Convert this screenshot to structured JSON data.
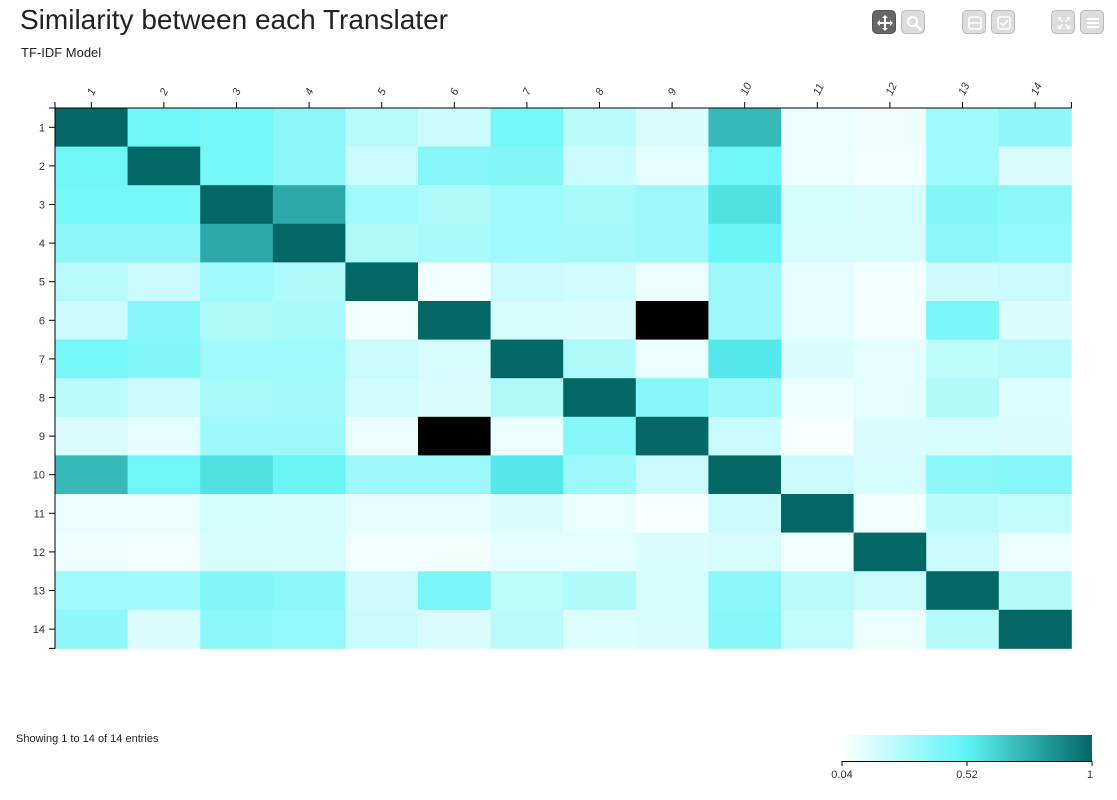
{
  "header": {
    "title": "Similarity between each Translater",
    "subtitle": "TF-IDF Model"
  },
  "toolbar": {
    "buttons": [
      {
        "name": "move-button",
        "icon": "move-icon",
        "active": true
      },
      {
        "name": "zoom-button",
        "icon": "search-icon",
        "active": false
      },
      {
        "name": "row-select-button",
        "icon": "row-icon",
        "active": false
      },
      {
        "name": "checkbox-button",
        "icon": "checkbox-icon",
        "active": false
      },
      {
        "name": "fullscreen-button",
        "icon": "expand-icon",
        "active": false
      },
      {
        "name": "menu-button",
        "icon": "menu-icon",
        "active": false
      }
    ]
  },
  "footer": {
    "entries_text": "Showing 1 to 14 of 14 entries"
  },
  "chart_data": {
    "type": "heatmap",
    "title": "Similarity between each Translater",
    "subtitle": "TF-IDF Model",
    "x_labels": [
      "1",
      "2",
      "3",
      "4",
      "5",
      "6",
      "7",
      "8",
      "9",
      "10",
      "11",
      "12",
      "13",
      "14"
    ],
    "y_labels": [
      "1",
      "2",
      "3",
      "4",
      "5",
      "6",
      "7",
      "8",
      "9",
      "10",
      "11",
      "12",
      "13",
      "14"
    ],
    "color_scale": {
      "min": 0.04,
      "mid": 0.52,
      "max": 1,
      "colors": [
        "#ffffff",
        "#5cf4f6",
        "#036766"
      ],
      "tick_labels": [
        "0.04",
        "0.52",
        "1"
      ]
    },
    "special_color": "#000000",
    "values": [
      [
        1.0,
        0.47,
        0.44,
        0.38,
        0.25,
        0.2,
        0.44,
        0.24,
        0.15,
        0.72,
        0.1,
        0.09,
        0.32,
        0.37
      ],
      [
        0.47,
        1.0,
        0.44,
        0.38,
        0.2,
        0.4,
        0.41,
        0.2,
        0.12,
        0.47,
        0.1,
        0.08,
        0.32,
        0.15
      ],
      [
        0.44,
        0.44,
        1.0,
        0.78,
        0.32,
        0.28,
        0.32,
        0.3,
        0.33,
        0.58,
        0.17,
        0.16,
        0.41,
        0.38
      ],
      [
        0.38,
        0.38,
        0.78,
        1.0,
        0.28,
        0.3,
        0.32,
        0.31,
        0.33,
        0.48,
        0.16,
        0.16,
        0.38,
        0.36
      ],
      [
        0.25,
        0.2,
        0.32,
        0.28,
        1.0,
        0.08,
        0.2,
        0.18,
        0.1,
        0.33,
        0.12,
        0.08,
        0.19,
        0.2
      ],
      [
        0.2,
        0.4,
        0.28,
        0.3,
        0.08,
        1.0,
        0.16,
        0.15,
        null,
        0.33,
        0.12,
        0.08,
        0.43,
        0.15
      ],
      [
        0.44,
        0.41,
        0.32,
        0.32,
        0.2,
        0.16,
        1.0,
        0.28,
        0.1,
        0.56,
        0.15,
        0.12,
        0.23,
        0.24
      ],
      [
        0.24,
        0.2,
        0.3,
        0.31,
        0.18,
        0.15,
        0.28,
        1.0,
        0.4,
        0.33,
        0.1,
        0.12,
        0.27,
        0.14
      ],
      [
        0.15,
        0.12,
        0.33,
        0.33,
        0.1,
        null,
        0.1,
        0.4,
        1.0,
        0.2,
        0.06,
        0.15,
        0.16,
        0.15
      ],
      [
        0.72,
        0.47,
        0.58,
        0.48,
        0.33,
        0.33,
        0.56,
        0.33,
        0.2,
        1.0,
        0.2,
        0.16,
        0.38,
        0.4
      ],
      [
        0.1,
        0.1,
        0.17,
        0.16,
        0.12,
        0.12,
        0.15,
        0.1,
        0.06,
        0.2,
        1.0,
        0.08,
        0.24,
        0.22
      ],
      [
        0.09,
        0.08,
        0.16,
        0.16,
        0.08,
        0.08,
        0.12,
        0.12,
        0.15,
        0.16,
        0.08,
        1.0,
        0.2,
        0.1
      ],
      [
        0.32,
        0.32,
        0.41,
        0.38,
        0.19,
        0.43,
        0.23,
        0.27,
        0.16,
        0.38,
        0.24,
        0.2,
        1.0,
        0.26
      ],
      [
        0.37,
        0.15,
        0.38,
        0.36,
        0.2,
        0.15,
        0.24,
        0.14,
        0.15,
        0.4,
        0.22,
        0.1,
        0.26,
        1.0
      ]
    ]
  }
}
